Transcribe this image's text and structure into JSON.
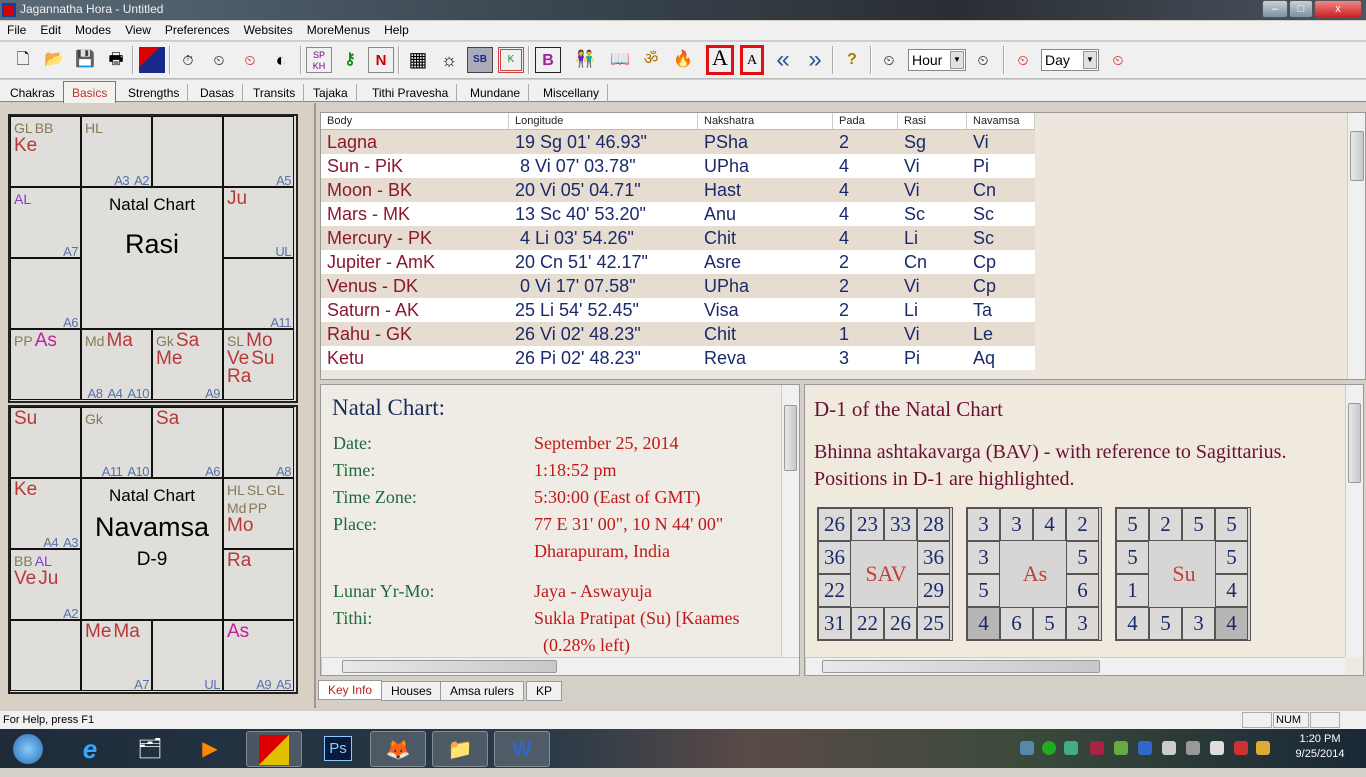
{
  "window": {
    "title": "Jagannatha Hora - Untitled",
    "minimize": "–",
    "maximize": "□",
    "close": "x"
  },
  "menu": [
    "File",
    "Edit",
    "Modes",
    "View",
    "Preferences",
    "Websites",
    "MoreMenus",
    "Help"
  ],
  "toolbar": {
    "icons": [
      "new-file-icon",
      "open-folder-icon",
      "save-icon",
      "print-icon",
      "jhora-logo-icon",
      "birth-data-icon",
      "time-back-icon",
      "time-reset-icon",
      "half-time-icon",
      "sp-kh-icon",
      "key-k-icon",
      "n-icon",
      "square-chart-icon",
      "sun-k-icon",
      "sb-icon",
      "k-box-icon",
      "b-grid-icon",
      "couple-icon",
      "book-icon",
      "om-sound-icon",
      "fire-icon",
      "font-larger-icon",
      "font-smaller-icon",
      "back-double-chevron-icon",
      "forward-double-chevron-icon",
      "help-icon"
    ],
    "glyphs": {
      "sp_kh": "SP KH",
      "n": "N",
      "sb": "SB",
      "k": "K",
      "b": "B",
      "font_large": "A",
      "font_small": "A",
      "back": "«",
      "forward": "»",
      "help": "?"
    },
    "hour_select": "Hour",
    "day_select": "Day"
  },
  "tabs": [
    "Chakras",
    "Basics",
    "Strengths",
    "Dasas",
    "Transits",
    "Tajaka",
    "Tithi Pravesha",
    "Mundane",
    "Miscellany"
  ],
  "active_tab": "Basics",
  "rasi_chart": {
    "title": "Natal Chart",
    "name": "Rasi",
    "subtitle": "",
    "houses": {
      "Pi": {
        "specials": [
          "GL",
          "BB"
        ],
        "planets": [
          "Ke"
        ],
        "arudhas": []
      },
      "Ar": {
        "specials": [
          "HL"
        ],
        "planets": [],
        "arudhas": [
          "A3",
          "A2"
        ]
      },
      "Ta": {
        "specials": [],
        "planets": [],
        "arudhas": []
      },
      "Ge": {
        "specials": [],
        "planets": [],
        "arudhas": [
          "A5"
        ]
      },
      "Aq": {
        "specials": [
          "AL"
        ],
        "planets": [],
        "arudhas": [
          "A7"
        ]
      },
      "Cn": {
        "specials": [],
        "planets": [
          "Ju"
        ],
        "arudhas": [
          "UL"
        ]
      },
      "Cp": {
        "specials": [],
        "planets": [],
        "arudhas": [
          "A6"
        ]
      },
      "Le": {
        "specials": [],
        "planets": [],
        "arudhas": [
          "A11"
        ]
      },
      "Sg": {
        "specials": [
          "PP"
        ],
        "planets": [
          "As"
        ],
        "arudhas": []
      },
      "Sc": {
        "specials": [
          "Md"
        ],
        "planets": [
          "Ma"
        ],
        "arudhas": [
          "A8",
          "A4",
          "A10"
        ]
      },
      "Li": {
        "specials": [
          "Gk"
        ],
        "planets": [
          "Sa",
          "Me"
        ],
        "arudhas": [
          "A9"
        ]
      },
      "Vi": {
        "specials": [
          "SL"
        ],
        "planets": [
          "Mo",
          "Ve",
          "Su",
          "Ra"
        ],
        "arudhas": []
      }
    }
  },
  "navamsa_chart": {
    "title": "Natal Chart",
    "name": "Navamsa",
    "subtitle": "D-9",
    "houses": {
      "Pi": {
        "specials": [],
        "planets": [
          "Su"
        ],
        "arudhas": []
      },
      "Ar": {
        "specials": [
          "Gk"
        ],
        "planets": [],
        "arudhas": [
          "A11",
          "A10"
        ]
      },
      "Ta": {
        "specials": [],
        "planets": [
          "Sa"
        ],
        "arudhas": [
          "A6"
        ]
      },
      "Ge": {
        "specials": [],
        "planets": [],
        "arudhas": [
          "A8"
        ]
      },
      "Aq": {
        "specials": [],
        "planets": [
          "Ke"
        ],
        "arudhas": [
          "A4",
          "A3"
        ]
      },
      "Cn": {
        "specials": [
          "HL",
          "SL",
          "GL",
          "Md",
          "PP"
        ],
        "planets": [
          "Mo"
        ],
        "arudhas": []
      },
      "Cp": {
        "specials": [
          "BB",
          "AL"
        ],
        "planets": [
          "Ve",
          "Ju"
        ],
        "arudhas": [
          "A2"
        ]
      },
      "Le": {
        "specials": [],
        "planets": [
          "Ra"
        ],
        "arudhas": []
      },
      "Sg": {
        "specials": [],
        "planets": [],
        "arudhas": []
      },
      "Sc": {
        "specials": [],
        "planets": [
          "Me",
          "Ma"
        ],
        "arudhas": [
          "A7"
        ]
      },
      "Li": {
        "specials": [],
        "planets": [],
        "arudhas": [
          "UL"
        ]
      },
      "Vi": {
        "specials": [],
        "planets": [
          "As"
        ],
        "arudhas": [
          "A9",
          "A5"
        ]
      }
    }
  },
  "positions_table": {
    "columns": [
      "Body",
      "Longitude",
      "Nakshatra",
      "Pada",
      "Rasi",
      "Navamsa"
    ],
    "rows": [
      [
        "Lagna",
        "19 Sg 01' 46.93\"",
        "PSha",
        "2",
        "Sg",
        "Vi"
      ],
      [
        "Sun - PiK",
        " 8 Vi 07' 03.78\"",
        "UPha",
        "4",
        "Vi",
        "Pi"
      ],
      [
        "Moon - BK",
        "20 Vi 05' 04.71\"",
        "Hast",
        "4",
        "Vi",
        "Cn"
      ],
      [
        "Mars - MK",
        "13 Sc 40' 53.20\"",
        "Anu",
        "4",
        "Sc",
        "Sc"
      ],
      [
        "Mercury - PK",
        " 4 Li 03' 54.26\"",
        "Chit",
        "4",
        "Li",
        "Sc"
      ],
      [
        "Jupiter - AmK",
        "20 Cn 51' 42.17\"",
        "Asre",
        "2",
        "Cn",
        "Cp"
      ],
      [
        "Venus - DK",
        " 0 Vi 17' 07.58\"",
        "UPha",
        "2",
        "Vi",
        "Cp"
      ],
      [
        "Saturn - AK",
        "25 Li 54' 52.45\"",
        "Visa",
        "2",
        "Li",
        "Ta"
      ],
      [
        "Rahu - GK",
        "26 Vi 02' 48.23\"",
        "Chit",
        "1",
        "Vi",
        "Le"
      ],
      [
        "Ketu",
        "26 Pi 02' 48.23\"",
        "Reva",
        "3",
        "Pi",
        "Aq"
      ]
    ]
  },
  "key_info": {
    "heading": "Natal Chart:",
    "rows": [
      {
        "label": "Date:",
        "value": "September 25, 2014"
      },
      {
        "label": "Time:",
        "value": "1:18:52 pm"
      },
      {
        "label": "Time Zone:",
        "value": "5:30:00 (East of GMT)"
      },
      {
        "label": "Place:",
        "value": "77 E 31' 00\", 10 N 44' 00\""
      },
      {
        "label": "",
        "value": "Dharapuram, India"
      },
      {
        "label": "Lunar Yr-Mo:",
        "value": "Jaya - Aswayuja"
      },
      {
        "label": "Tithi:",
        "value": "Sukla Pratipat (Su) [Kaames"
      },
      {
        "label": "",
        "value": "  (0.28% left)"
      }
    ]
  },
  "bottom_tabs": [
    "Key Info",
    "Houses",
    "Amsa rulers",
    "KP"
  ],
  "active_bottom_tab": "Key Info",
  "bav": {
    "heading": "D-1 of the Natal Chart",
    "line1": "Bhinna ashtakavarga (BAV) - with reference to Sagittarius.",
    "line2": "Positions in D-1 are highlighted.",
    "grids": [
      {
        "label": "SAV",
        "top": [
          "26",
          "23",
          "33",
          "28"
        ],
        "left": [
          "36",
          "22"
        ],
        "right": [
          "36",
          "29"
        ],
        "bottom": [
          "31",
          "22",
          "26",
          "25"
        ],
        "highlight": null
      },
      {
        "label": "As",
        "top": [
          "3",
          "3",
          "4",
          "2"
        ],
        "left": [
          "3",
          "5"
        ],
        "right": [
          "5",
          "6"
        ],
        "bottom": [
          "4",
          "6",
          "5",
          "3"
        ],
        "highlight": "bottom-0"
      },
      {
        "label": "Su",
        "top": [
          "5",
          "2",
          "5",
          "5"
        ],
        "left": [
          "5",
          "1"
        ],
        "right": [
          "5",
          "4"
        ],
        "bottom": [
          "4",
          "5",
          "3",
          "4"
        ],
        "highlight": "bottom-3"
      }
    ]
  },
  "status": {
    "help": "For Help, press F1",
    "num": "NUM"
  },
  "taskbar": {
    "apps": [
      "start-orb-icon",
      "internet-explorer-icon",
      "file-explorer-icon",
      "media-player-icon",
      "jagannatha-hora-icon",
      "photoshop-icon",
      "firefox-icon",
      "folders-icon",
      "word-icon"
    ],
    "ps": "Ps",
    "time": "1:20 PM",
    "date": "9/25/2014"
  },
  "colors": {
    "planet": "#b83838",
    "lagna": "#c0209a",
    "special": "#857a55",
    "arudha": "#5572a8",
    "highlight_box": "#e01010",
    "key_label": "#1e6a3a",
    "key_value": "#c01818"
  }
}
